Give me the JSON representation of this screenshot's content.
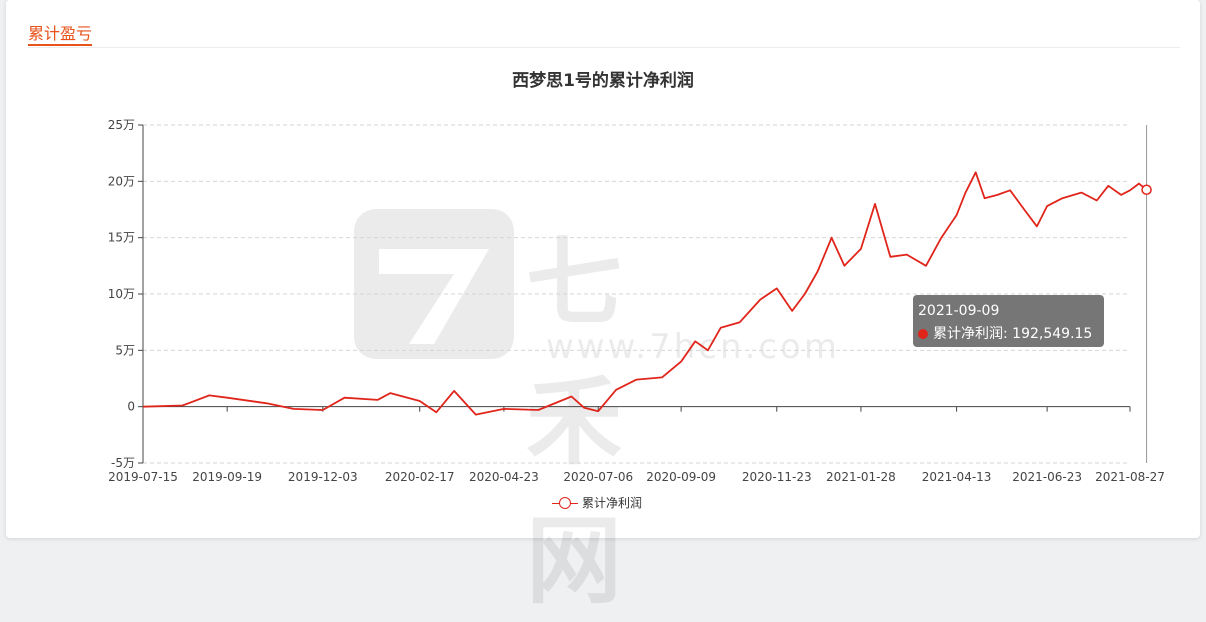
{
  "section_title": "累计盈亏",
  "watermark": {
    "text": "七禾网",
    "url": "www.7hcn.com"
  },
  "tooltip": {
    "date": "2021-09-09",
    "series": "累计净利润",
    "value": "192,549.15"
  },
  "colors": {
    "accent": "#e8531c",
    "series": "#e0251b"
  },
  "chart_data": {
    "type": "line",
    "title": "西梦思1号的累计净利润",
    "xlabel": "",
    "ylabel": "",
    "ylim": [
      -50000,
      250000
    ],
    "y_ticks": [
      {
        "value": 250000,
        "label": "25万"
      },
      {
        "value": 200000,
        "label": "20万"
      },
      {
        "value": 150000,
        "label": "15万"
      },
      {
        "value": 100000,
        "label": "10万"
      },
      {
        "value": 50000,
        "label": "5万"
      },
      {
        "value": 0,
        "label": "0"
      },
      {
        "value": -50000,
        "label": "-5万"
      }
    ],
    "x_ticks": [
      "2019-07-15",
      "2019-09-19",
      "2019-12-03",
      "2020-02-17",
      "2020-04-23",
      "2020-07-06",
      "2020-09-09",
      "2020-11-23",
      "2021-01-28",
      "2021-04-13",
      "2021-06-23",
      "2021-08-27"
    ],
    "grid": true,
    "legend": "bottom-center",
    "series": [
      {
        "name": "累计净利润",
        "x": [
          "2019-07-15",
          "2019-08-15",
          "2019-09-05",
          "2019-09-19",
          "2019-10-20",
          "2019-11-10",
          "2019-12-03",
          "2019-12-20",
          "2020-01-15",
          "2020-01-25",
          "2020-02-17",
          "2020-03-01",
          "2020-03-15",
          "2020-04-01",
          "2020-04-23",
          "2020-05-20",
          "2020-06-15",
          "2020-06-25",
          "2020-07-06",
          "2020-07-20",
          "2020-08-05",
          "2020-08-25",
          "2020-09-09",
          "2020-09-20",
          "2020-09-30",
          "2020-10-10",
          "2020-10-25",
          "2020-11-10",
          "2020-11-23",
          "2020-12-05",
          "2020-12-15",
          "2020-12-25",
          "2021-01-05",
          "2021-01-15",
          "2021-01-28",
          "2021-02-08",
          "2021-02-20",
          "2021-03-05",
          "2021-03-20",
          "2021-04-01",
          "2021-04-13",
          "2021-04-20",
          "2021-04-28",
          "2021-05-05",
          "2021-05-15",
          "2021-05-25",
          "2021-06-05",
          "2021-06-15",
          "2021-06-23",
          "2021-07-05",
          "2021-07-20",
          "2021-08-01",
          "2021-08-10",
          "2021-08-20",
          "2021-08-27",
          "2021-09-03",
          "2021-09-09"
        ],
        "values": [
          0,
          1000,
          10000,
          8000,
          3000,
          -2000,
          -3000,
          8000,
          6000,
          12000,
          5000,
          -5000,
          14000,
          -7000,
          -2000,
          -3000,
          9000,
          -1000,
          -4000,
          15000,
          24000,
          26000,
          40000,
          58000,
          50000,
          70000,
          75000,
          95000,
          105000,
          85000,
          100000,
          120000,
          150000,
          125000,
          140000,
          180000,
          133000,
          135000,
          125000,
          150000,
          170000,
          190000,
          208000,
          185000,
          188000,
          192000,
          175000,
          160000,
          178000,
          185000,
          190000,
          183000,
          196000,
          188000,
          192000,
          198000,
          192549
        ]
      }
    ]
  }
}
